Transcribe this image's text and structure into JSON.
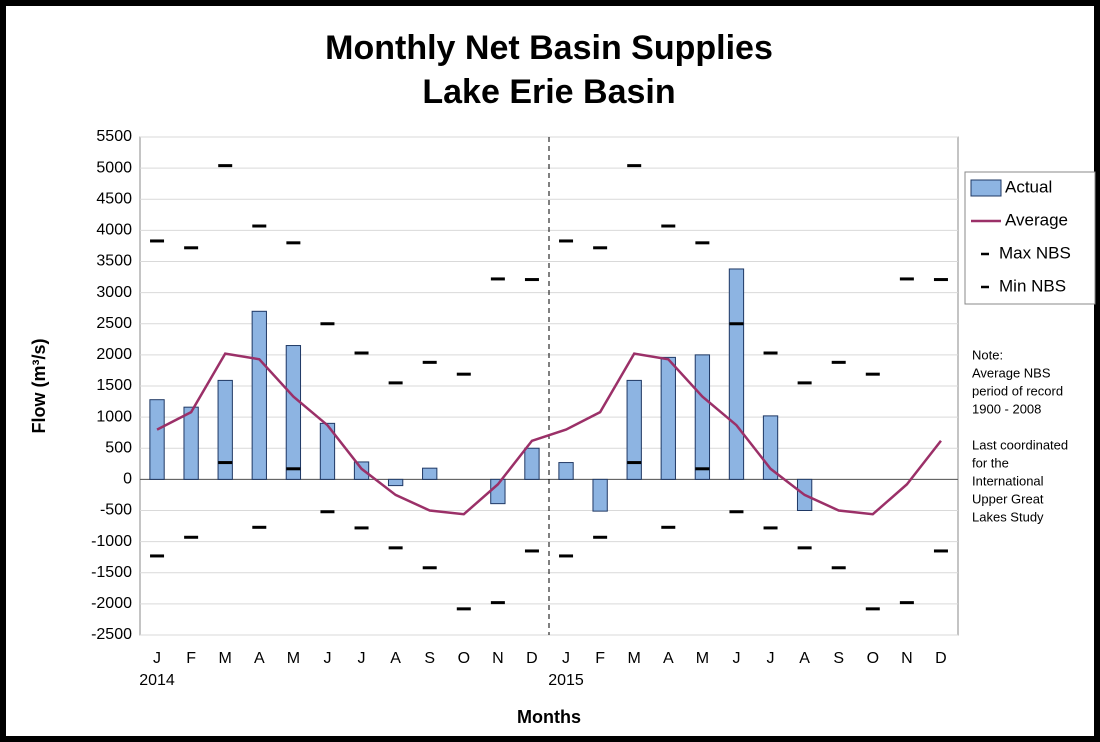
{
  "chart_data": {
    "type": "bar",
    "title": "Monthly Net Basin Supplies",
    "subtitle": "Lake Erie Basin",
    "y_label": "Flow (m³/s)",
    "x_label": "Months",
    "categories": [
      "J",
      "F",
      "M",
      "A",
      "M",
      "J",
      "J",
      "A",
      "S",
      "O",
      "N",
      "D",
      "J",
      "F",
      "M",
      "A",
      "M",
      "J",
      "J",
      "A",
      "S",
      "O",
      "N",
      "D"
    ],
    "years": [
      "2014",
      "2015"
    ],
    "ylim": [
      -2500,
      5500
    ],
    "yticks": [
      -2500,
      -2000,
      -1500,
      -1000,
      -500,
      0,
      500,
      1000,
      1500,
      2000,
      2500,
      3000,
      3500,
      4000,
      4500,
      5000,
      5500
    ],
    "grid": true,
    "legend": "right",
    "series": [
      {
        "name": "Actual",
        "kind": "bar",
        "color": "#8db4e2",
        "values": [
          1280,
          1160,
          1590,
          2700,
          2150,
          900,
          280,
          -100,
          180,
          null,
          -390,
          500,
          270,
          -510,
          1590,
          1960,
          2000,
          3380,
          1020,
          -500,
          null,
          null,
          null,
          null
        ]
      },
      {
        "name": "Average",
        "kind": "line",
        "color": "#9b3068",
        "values": [
          800,
          1080,
          2020,
          1930,
          1330,
          870,
          170,
          -250,
          -500,
          -560,
          -80,
          620,
          800,
          1080,
          2020,
          1930,
          1330,
          870,
          170,
          -250,
          -500,
          -560,
          -80,
          620
        ]
      },
      {
        "name": "Max NBS",
        "kind": "dash",
        "color": "#000000",
        "values": [
          3830,
          3720,
          5040,
          4070,
          3800,
          2500,
          2030,
          1550,
          1880,
          1690,
          3220,
          3210,
          3830,
          3720,
          5040,
          4070,
          3800,
          2500,
          2030,
          1550,
          1880,
          1690,
          3220,
          3210
        ]
      },
      {
        "name": "Min NBS",
        "kind": "dash",
        "color": "#000000",
        "values": [
          -1230,
          -930,
          270,
          -770,
          170,
          -520,
          -780,
          -1100,
          -1420,
          -2080,
          -1980,
          -1150,
          -1230,
          -930,
          270,
          -770,
          170,
          -520,
          -780,
          -1100,
          -1420,
          -2080,
          -1980,
          -1150
        ]
      }
    ],
    "note": [
      [
        "Note:",
        "Average NBS",
        "period of record",
        "1900 - 2008"
      ],
      [
        "Last coordinated",
        "for the",
        "International",
        "Upper Great",
        "Lakes Study"
      ]
    ]
  }
}
